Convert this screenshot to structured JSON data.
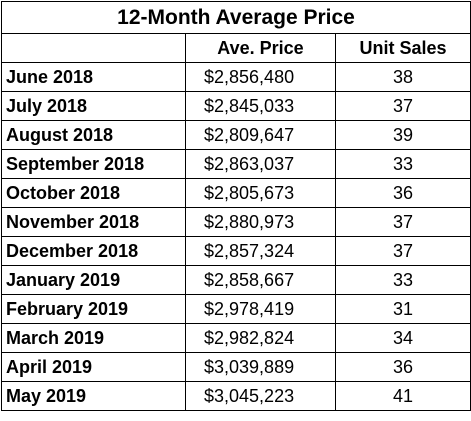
{
  "chart_data": {
    "type": "table",
    "title": "12-Month Average Price",
    "columns": [
      "",
      "Ave. Price",
      "Unit Sales"
    ],
    "rows": [
      {
        "month": "June 2018",
        "price": "$2,856,480",
        "sales": "38"
      },
      {
        "month": "July 2018",
        "price": "$2,845,033",
        "sales": "37"
      },
      {
        "month": "August 2018",
        "price": "$2,809,647",
        "sales": "39"
      },
      {
        "month": "September 2018",
        "price": "$2,863,037",
        "sales": "33"
      },
      {
        "month": "October 2018",
        "price": "$2,805,673",
        "sales": "36"
      },
      {
        "month": "November 2018",
        "price": "$2,880,973",
        "sales": "37"
      },
      {
        "month": "December 2018",
        "price": "$2,857,324",
        "sales": "37"
      },
      {
        "month": "January 2019",
        "price": "$2,858,667",
        "sales": "33"
      },
      {
        "month": "February 2019",
        "price": "$2,978,419",
        "sales": "31"
      },
      {
        "month": "March 2019",
        "price": "$2,982,824",
        "sales": "34"
      },
      {
        "month": "April 2019",
        "price": "$3,039,889",
        "sales": "36"
      },
      {
        "month": "May 2019",
        "price": "$3,045,223",
        "sales": "41"
      }
    ]
  }
}
